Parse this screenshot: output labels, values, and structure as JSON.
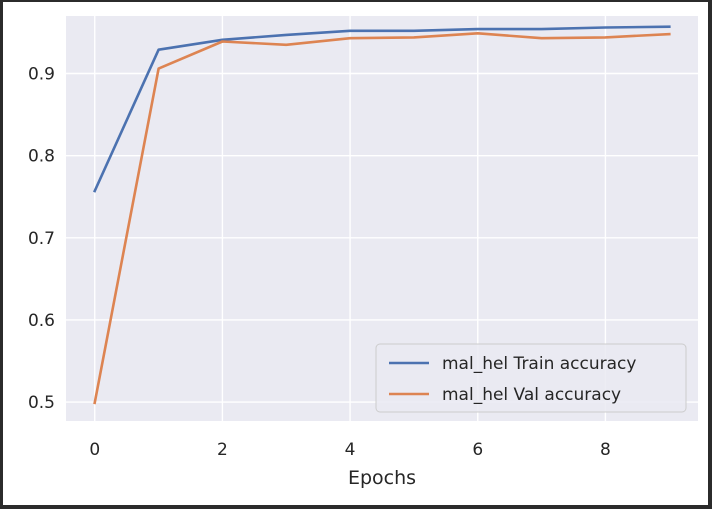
{
  "chart_data": {
    "type": "line",
    "title": "",
    "xlabel": "Epochs",
    "ylabel": "",
    "x": [
      0,
      1,
      2,
      3,
      4,
      5,
      6,
      7,
      8,
      9
    ],
    "xticks": [
      "0",
      "2",
      "4",
      "6",
      "8"
    ],
    "yticks": [
      "0.5",
      "0.6",
      "0.7",
      "0.8",
      "0.9"
    ],
    "xlim": [
      -0.45,
      9.45
    ],
    "ylim": [
      0.477,
      0.97
    ],
    "grid": true,
    "legend_position": "lower-right",
    "series": [
      {
        "name": "mal_hel Train accuracy",
        "color": "#4c72b0",
        "values": [
          0.757,
          0.929,
          0.941,
          0.947,
          0.952,
          0.952,
          0.954,
          0.954,
          0.956,
          0.957
        ]
      },
      {
        "name": "mal_hel Val accuracy",
        "color": "#dd8452",
        "values": [
          0.499,
          0.906,
          0.939,
          0.935,
          0.943,
          0.944,
          0.949,
          0.943,
          0.944,
          0.948
        ]
      }
    ]
  },
  "style": {
    "plot_background": "#eaeaf2",
    "grid_color": "#ffffff",
    "text_color": "#262626"
  }
}
